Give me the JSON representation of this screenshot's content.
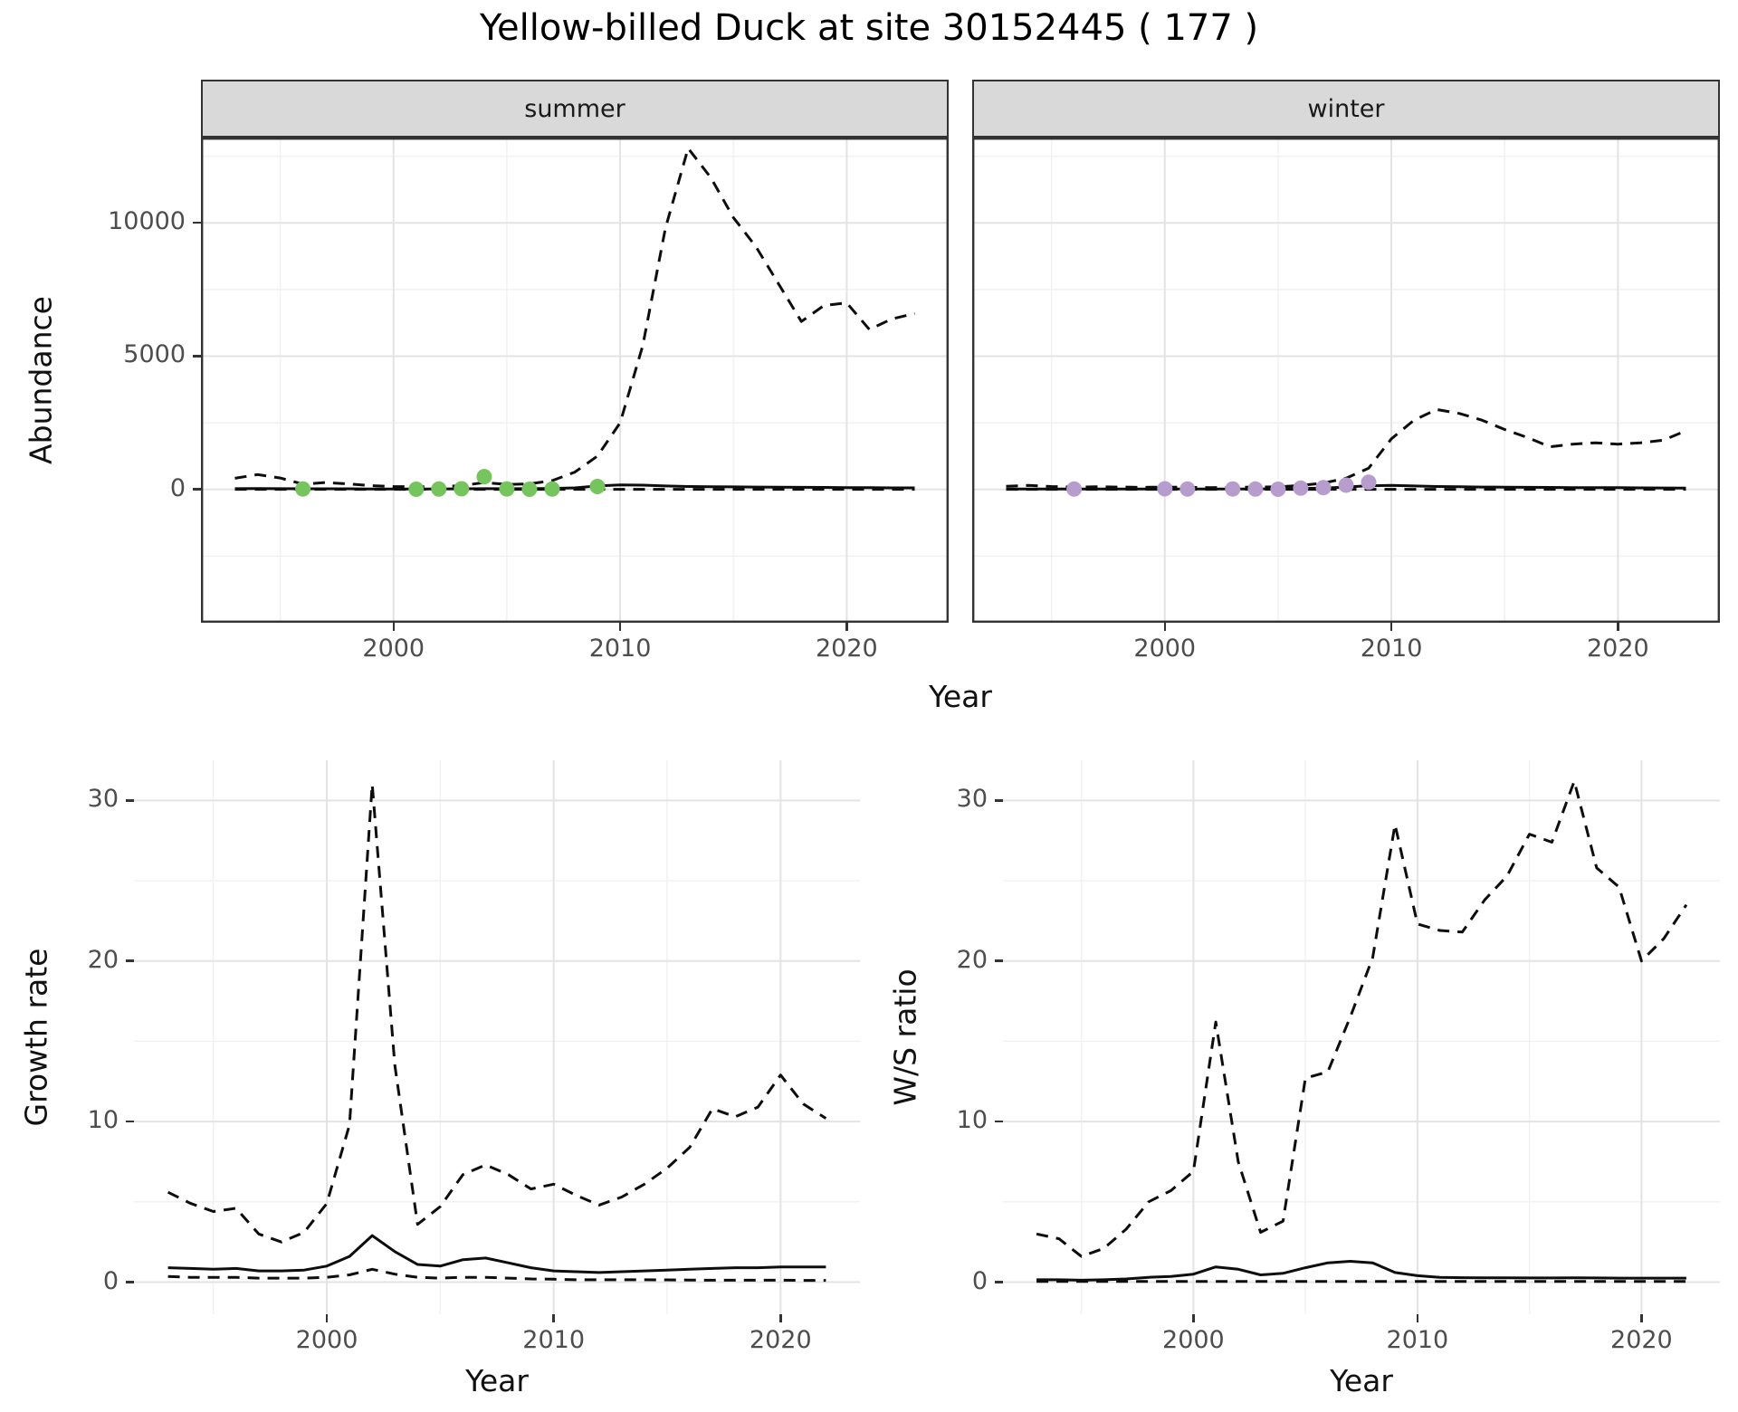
{
  "title": "Yellow-billed Duck at site 30152445 ( 177 )",
  "colors": {
    "summer_points": "#76c45e",
    "winter_points": "#b79cce",
    "line": "#0d0d0d",
    "strip_bg": "#d9d9d9"
  },
  "chart_data": [
    {
      "type": "line",
      "facet_label": "summer",
      "xlabel": "Year",
      "ylabel": "Abundance",
      "xlim": [
        1991.5,
        2024.5
      ],
      "ylim": [
        -5000,
        13200
      ],
      "xticks": [
        2000,
        2010,
        2020
      ],
      "xminor": [
        1995,
        2005,
        2015
      ],
      "yticks": [
        0,
        5000,
        10000
      ],
      "yminor": [
        -2500,
        2500,
        7500,
        12500
      ],
      "show_x_axis": true,
      "show_y_axis": true,
      "panel_border": true,
      "x": [
        1993,
        1994,
        1995,
        1996,
        1997,
        1998,
        1999,
        2000,
        2001,
        2002,
        2003,
        2004,
        2005,
        2006,
        2007,
        2008,
        2009,
        2010,
        2011,
        2012,
        2013,
        2014,
        2015,
        2016,
        2017,
        2018,
        2019,
        2020,
        2021,
        2022,
        2023
      ],
      "series": [
        {
          "name": "upper-ci",
          "style": "dashed",
          "y": [
            420,
            560,
            430,
            200,
            260,
            210,
            140,
            110,
            100,
            110,
            140,
            260,
            190,
            210,
            330,
            650,
            1250,
            2500,
            5400,
            9800,
            12800,
            11700,
            10200,
            9100,
            7700,
            6300,
            6900,
            7000,
            6000,
            6400,
            6600
          ]
        },
        {
          "name": "lower-ci",
          "style": "dashed",
          "y": [
            5,
            5,
            5,
            5,
            5,
            5,
            5,
            5,
            5,
            5,
            5,
            5,
            5,
            5,
            5,
            5,
            5,
            5,
            5,
            5,
            5,
            5,
            5,
            5,
            5,
            5,
            5,
            5,
            5,
            5,
            5
          ]
        },
        {
          "name": "estimate",
          "style": "solid",
          "y": [
            30,
            35,
            30,
            25,
            25,
            25,
            20,
            20,
            20,
            20,
            25,
            30,
            30,
            30,
            40,
            60,
            130,
            170,
            160,
            130,
            110,
            100,
            95,
            90,
            85,
            80,
            75,
            70,
            65,
            60,
            60
          ]
        },
        {
          "name": "observations",
          "style": "points",
          "color": "#76c45e",
          "x": [
            1996,
            2001,
            2002,
            2003,
            2004,
            2005,
            2006,
            2007,
            2009
          ],
          "y": [
            20,
            10,
            15,
            25,
            480,
            20,
            10,
            15,
            110
          ]
        }
      ]
    },
    {
      "type": "line",
      "facet_label": "winter",
      "xlabel": "Year",
      "ylabel": "Abundance",
      "xlim": [
        1991.5,
        2024.5
      ],
      "ylim": [
        -5000,
        13200
      ],
      "xticks": [
        2000,
        2010,
        2020
      ],
      "xminor": [
        1995,
        2005,
        2015
      ],
      "yticks": [
        0,
        5000,
        10000
      ],
      "yminor": [
        -2500,
        2500,
        7500,
        12500
      ],
      "show_x_axis": true,
      "show_y_axis": false,
      "panel_border": true,
      "x": [
        1993,
        1994,
        1995,
        1996,
        1997,
        1998,
        1999,
        2000,
        2001,
        2002,
        2003,
        2004,
        2005,
        2006,
        2007,
        2008,
        2009,
        2010,
        2011,
        2012,
        2013,
        2014,
        2015,
        2016,
        2017,
        2018,
        2019,
        2020,
        2021,
        2022,
        2023
      ],
      "series": [
        {
          "name": "upper-ci",
          "style": "dashed",
          "y": [
            120,
            150,
            110,
            90,
            100,
            90,
            80,
            90,
            80,
            70,
            80,
            90,
            100,
            150,
            240,
            420,
            800,
            1900,
            2600,
            3000,
            2850,
            2600,
            2250,
            1950,
            1600,
            1700,
            1750,
            1700,
            1750,
            1850,
            2200
          ]
        },
        {
          "name": "lower-ci",
          "style": "dashed",
          "y": [
            5,
            5,
            5,
            5,
            5,
            5,
            5,
            5,
            5,
            5,
            5,
            5,
            5,
            5,
            5,
            5,
            5,
            5,
            5,
            5,
            5,
            5,
            5,
            5,
            5,
            5,
            5,
            5,
            5,
            5,
            5
          ]
        },
        {
          "name": "estimate",
          "style": "solid",
          "y": [
            15,
            20,
            15,
            15,
            15,
            15,
            15,
            20,
            15,
            15,
            15,
            20,
            25,
            35,
            50,
            90,
            140,
            150,
            130,
            110,
            100,
            90,
            85,
            80,
            75,
            70,
            70,
            65,
            60,
            55,
            50
          ]
        },
        {
          "name": "observations",
          "style": "points",
          "color": "#b79cce",
          "x": [
            1996,
            2000,
            2001,
            2003,
            2004,
            2005,
            2006,
            2007,
            2008,
            2009
          ],
          "y": [
            15,
            25,
            15,
            20,
            15,
            10,
            50,
            70,
            160,
            270
          ]
        }
      ]
    },
    {
      "type": "line",
      "facet_label": "",
      "xlabel": "Year",
      "ylabel": "Growth rate",
      "xlim": [
        1991.5,
        2023.5
      ],
      "ylim": [
        -2,
        32.5
      ],
      "xticks": [
        2000,
        2010,
        2020
      ],
      "xminor": [
        1995,
        2005,
        2015
      ],
      "yticks": [
        0,
        10,
        20,
        30
      ],
      "yminor": [
        5,
        15,
        25
      ],
      "show_x_axis": true,
      "show_y_axis": true,
      "panel_border": false,
      "x": [
        1993,
        1994,
        1995,
        1996,
        1997,
        1998,
        1999,
        2000,
        2001,
        2002,
        2003,
        2004,
        2005,
        2006,
        2007,
        2008,
        2009,
        2010,
        2011,
        2012,
        2013,
        2014,
        2015,
        2016,
        2017,
        2018,
        2019,
        2020,
        2021,
        2022
      ],
      "series": [
        {
          "name": "upper-ci",
          "style": "dashed",
          "y": [
            5.6,
            4.9,
            4.4,
            4.6,
            3.0,
            2.5,
            3.1,
            4.9,
            9.8,
            31.0,
            13.5,
            3.6,
            4.7,
            6.7,
            7.3,
            6.7,
            5.8,
            6.1,
            5.4,
            4.8,
            5.3,
            6.1,
            7.1,
            8.4,
            10.8,
            10.3,
            10.9,
            12.9,
            11.1,
            10.2
          ]
        },
        {
          "name": "lower-ci",
          "style": "dashed",
          "y": [
            0.35,
            0.3,
            0.3,
            0.3,
            0.25,
            0.25,
            0.25,
            0.3,
            0.45,
            0.8,
            0.5,
            0.3,
            0.25,
            0.3,
            0.3,
            0.25,
            0.2,
            0.18,
            0.15,
            0.15,
            0.15,
            0.15,
            0.14,
            0.13,
            0.12,
            0.12,
            0.12,
            0.12,
            0.11,
            0.11
          ]
        },
        {
          "name": "estimate",
          "style": "solid",
          "y": [
            0.9,
            0.85,
            0.8,
            0.85,
            0.7,
            0.7,
            0.75,
            1.0,
            1.6,
            2.9,
            1.9,
            1.1,
            1.0,
            1.4,
            1.5,
            1.2,
            0.9,
            0.7,
            0.65,
            0.6,
            0.65,
            0.7,
            0.75,
            0.8,
            0.85,
            0.9,
            0.9,
            0.95,
            0.95,
            0.95
          ]
        }
      ]
    },
    {
      "type": "line",
      "facet_label": "",
      "xlabel": "Year",
      "ylabel": "W/S ratio",
      "xlim": [
        1991.5,
        2023.5
      ],
      "ylim": [
        -2,
        32.5
      ],
      "xticks": [
        2000,
        2010,
        2020
      ],
      "xminor": [
        1995,
        2005,
        2015
      ],
      "yticks": [
        0,
        10,
        20,
        30
      ],
      "yminor": [
        5,
        15,
        25
      ],
      "show_x_axis": true,
      "show_y_axis": true,
      "panel_border": false,
      "x": [
        1993,
        1994,
        1995,
        1996,
        1997,
        1998,
        1999,
        2000,
        2001,
        2002,
        2003,
        2004,
        2005,
        2006,
        2007,
        2008,
        2009,
        2010,
        2011,
        2012,
        2013,
        2014,
        2015,
        2016,
        2017,
        2018,
        2019,
        2020,
        2021,
        2022
      ],
      "series": [
        {
          "name": "upper-ci",
          "style": "dashed",
          "y": [
            3.0,
            2.7,
            1.6,
            2.1,
            3.3,
            5.0,
            5.7,
            6.9,
            16.2,
            7.5,
            3.1,
            3.8,
            12.7,
            13.1,
            16.5,
            20.2,
            28.5,
            22.3,
            21.9,
            21.8,
            23.8,
            25.3,
            27.9,
            27.4,
            31.2,
            25.8,
            24.6,
            20.0,
            21.4,
            23.5
          ]
        },
        {
          "name": "lower-ci",
          "style": "dashed",
          "y": [
            0.04,
            0.04,
            0.04,
            0.04,
            0.04,
            0.04,
            0.04,
            0.04,
            0.04,
            0.04,
            0.04,
            0.04,
            0.04,
            0.04,
            0.04,
            0.04,
            0.04,
            0.04,
            0.04,
            0.04,
            0.04,
            0.04,
            0.04,
            0.04,
            0.04,
            0.04,
            0.04,
            0.04,
            0.04,
            0.04
          ]
        },
        {
          "name": "estimate",
          "style": "solid",
          "y": [
            0.15,
            0.15,
            0.12,
            0.15,
            0.2,
            0.3,
            0.35,
            0.5,
            0.95,
            0.8,
            0.45,
            0.55,
            0.9,
            1.2,
            1.3,
            1.2,
            0.6,
            0.4,
            0.3,
            0.28,
            0.27,
            0.27,
            0.26,
            0.26,
            0.27,
            0.26,
            0.25,
            0.25,
            0.25,
            0.25
          ]
        }
      ]
    }
  ]
}
